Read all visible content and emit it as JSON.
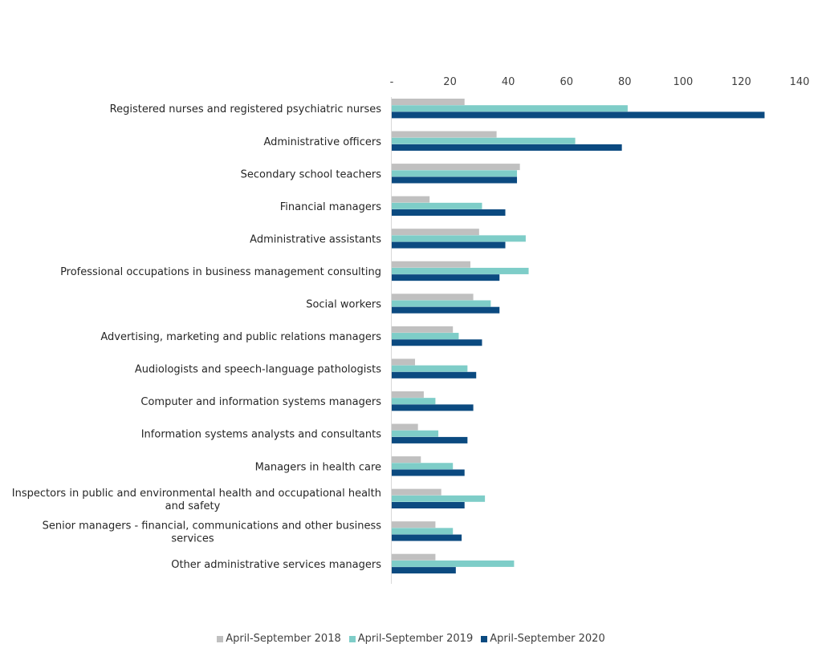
{
  "chart_data": {
    "type": "bar",
    "orientation": "horizontal",
    "title": "",
    "xlabel": "",
    "ylabel": "",
    "xlim": [
      0,
      140
    ],
    "x_ticks": [
      "-",
      "20",
      "40",
      "60",
      "80",
      "100",
      "120",
      "140"
    ],
    "legend_position": "bottom",
    "grid": false,
    "categories": [
      [
        "Registered nurses and registered psychiatric nurses"
      ],
      [
        "Administrative officers"
      ],
      [
        "Secondary school teachers"
      ],
      [
        "Financial managers"
      ],
      [
        "Administrative assistants"
      ],
      [
        "Professional occupations in business management consulting"
      ],
      [
        "Social workers"
      ],
      [
        "Advertising, marketing and public relations managers"
      ],
      [
        "Audiologists and speech-language pathologists"
      ],
      [
        "Computer and information systems managers"
      ],
      [
        "Information systems analysts and consultants"
      ],
      [
        "Managers in health care"
      ],
      [
        "Inspectors in public and environmental health and occupational health",
        "and safety"
      ],
      [
        "Senior managers - financial, communications and other business",
        "services"
      ],
      [
        "Other administrative services managers"
      ]
    ],
    "series": [
      {
        "name": "April-September 2018",
        "color": "#c0c0c0",
        "values": [
          25,
          36,
          44,
          13,
          30,
          27,
          28,
          21,
          8,
          11,
          9,
          10,
          17,
          15,
          15
        ]
      },
      {
        "name": "April-September 2019",
        "color": "#7ecdc8",
        "values": [
          81,
          63,
          43,
          31,
          46,
          47,
          34,
          23,
          26,
          15,
          16,
          21,
          32,
          21,
          42
        ]
      },
      {
        "name": "April-September 2020",
        "color": "#0b4a80",
        "values": [
          128,
          79,
          43,
          39,
          39,
          37,
          37,
          31,
          29,
          28,
          26,
          25,
          25,
          24,
          22
        ]
      }
    ]
  }
}
